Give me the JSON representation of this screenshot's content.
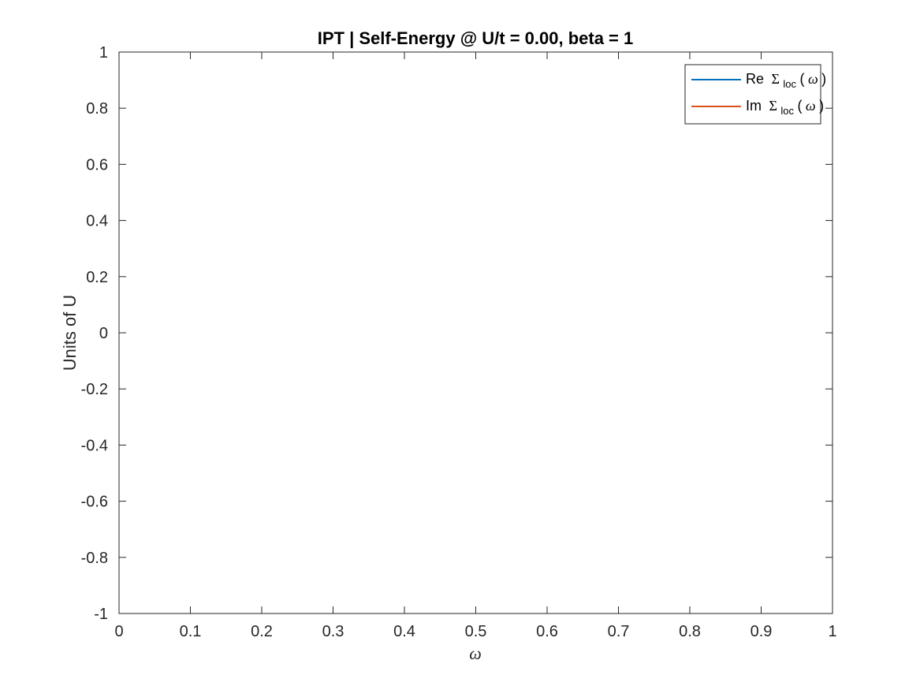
{
  "chart_data": {
    "type": "line",
    "title": "IPT  |  Self-Energy @ U/t = 0.00, beta = 1",
    "xlabel": "ω",
    "ylabel": "Units of U",
    "xlim": [
      0,
      1
    ],
    "ylim": [
      -1,
      1
    ],
    "x_ticks": [
      "0",
      "0.1",
      "0.2",
      "0.3",
      "0.4",
      "0.5",
      "0.6",
      "0.7",
      "0.8",
      "0.9",
      "1"
    ],
    "y_ticks": [
      "1",
      "0.8",
      "0.6",
      "0.4",
      "0.2",
      "0",
      "-0.2",
      "-0.4",
      "-0.6",
      "-0.8",
      "-1"
    ],
    "grid": false,
    "legend_position": "top-right",
    "series": [
      {
        "prefix": "Re",
        "symbol": "Σ",
        "subscript": "loc",
        "arg_open": "(",
        "arg": "ω",
        "arg_close": ")",
        "color": "#0072BD",
        "x": [],
        "y": []
      },
      {
        "prefix": "Im",
        "symbol": "Σ",
        "subscript": "loc",
        "arg_open": "(",
        "arg": "ω",
        "arg_close": ")",
        "color": "#D95319",
        "x": [],
        "y": []
      }
    ]
  }
}
